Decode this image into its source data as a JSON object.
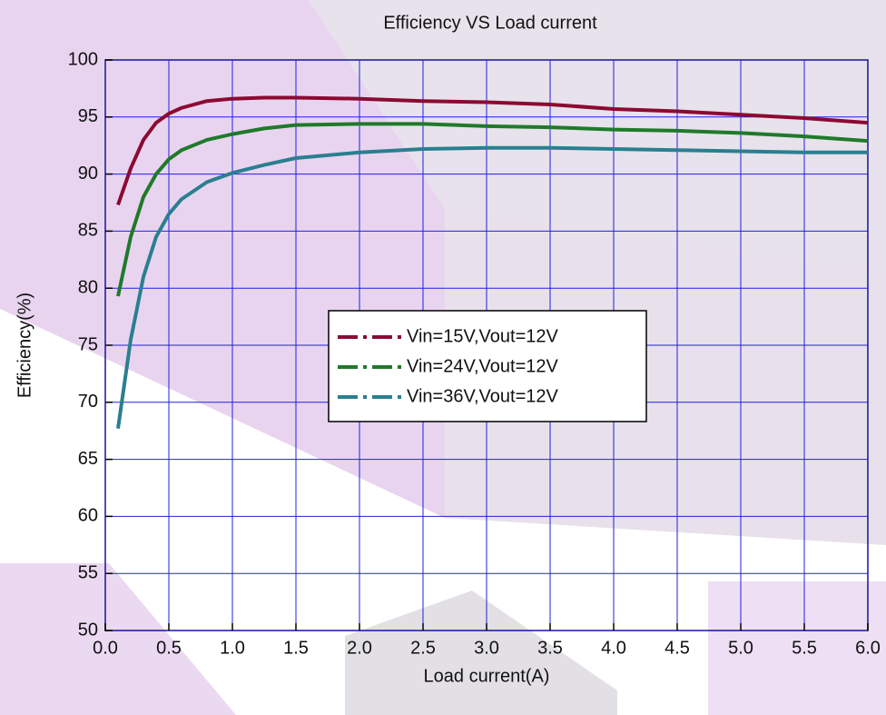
{
  "chart_data": {
    "type": "line",
    "title": "Efficiency VS Load current",
    "x_label": "Load current(A)",
    "y_label": "Efficiency(%)",
    "x": [
      0.1,
      0.2,
      0.3,
      0.4,
      0.5,
      0.6,
      0.8,
      1.0,
      1.25,
      1.5,
      2.0,
      2.5,
      3.0,
      3.5,
      4.0,
      4.5,
      5.0,
      5.5,
      6.0
    ],
    "series": [
      {
        "name": "Vin=15V,Vout=12V",
        "color": "#8b0a32",
        "values": [
          87.3,
          90.5,
          93,
          94.5,
          95.3,
          95.8,
          96.4,
          96.6,
          96.7,
          96.7,
          96.6,
          96.4,
          96.3,
          96.1,
          95.7,
          95.5,
          95.2,
          94.9,
          94.5
        ]
      },
      {
        "name": "Vin=24V,Vout=12V",
        "color": "#1f7a2a",
        "values": [
          79.3,
          84.5,
          88,
          90,
          91.3,
          92.1,
          93,
          93.5,
          94,
          94.3,
          94.4,
          94.4,
          94.2,
          94.1,
          93.9,
          93.8,
          93.6,
          93.3,
          92.9
        ]
      },
      {
        "name": "Vin=36V,Vout=12V",
        "color": "#2a7f8f",
        "values": [
          67.7,
          75.5,
          81,
          84.5,
          86.5,
          87.8,
          89.3,
          90.1,
          90.8,
          91.4,
          91.9,
          92.2,
          92.3,
          92.3,
          92.2,
          92.1,
          92,
          91.9,
          91.9
        ]
      }
    ],
    "xlim": [
      0,
      6
    ],
    "ylim": [
      50,
      100
    ],
    "xticks": [
      {
        "value": 0,
        "label": "0.0"
      },
      0.5,
      {
        "value": 1,
        "label": "1.0"
      },
      1.5,
      {
        "value": 2,
        "label": "2.0"
      },
      2.5,
      {
        "value": 3,
        "label": "3.0"
      },
      3.5,
      {
        "value": 4,
        "label": "4.0"
      },
      4.5,
      {
        "value": 5,
        "label": "5.0"
      },
      5.5,
      {
        "value": 6,
        "label": "6.0"
      }
    ],
    "yticks": [
      50,
      55,
      60,
      65,
      70,
      75,
      80,
      85,
      90,
      95,
      100
    ],
    "grid": true,
    "grid_color": "#2020e0"
  }
}
